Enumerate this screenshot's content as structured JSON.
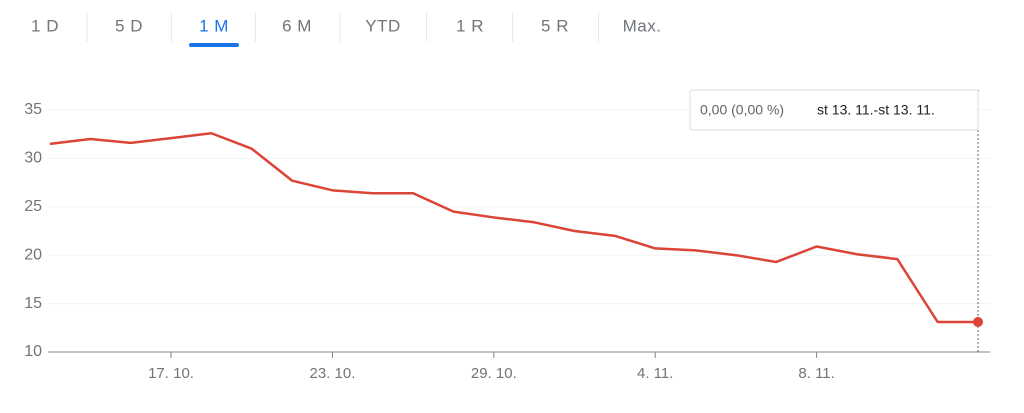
{
  "tabs": {
    "items": [
      "1 D",
      "5 D",
      "1 M",
      "6 M",
      "YTD",
      "1 R",
      "5 R",
      "Max."
    ],
    "selected": 2
  },
  "chart_data": {
    "type": "line",
    "categories": [
      null,
      null,
      null,
      "17. 10.",
      null,
      null,
      null,
      "23. 10.",
      null,
      null,
      null,
      "29. 10.",
      null,
      null,
      null,
      "4. 11.",
      null,
      null,
      null,
      "8. 11.",
      null,
      null,
      null,
      null
    ],
    "values": [
      31.5,
      32.0,
      31.6,
      32.1,
      32.6,
      31.0,
      27.7,
      26.7,
      26.4,
      26.4,
      24.5,
      23.9,
      23.4,
      22.5,
      22.0,
      20.7,
      20.5,
      20.0,
      19.3,
      20.9,
      20.1,
      19.6,
      13.1,
      13.1
    ],
    "color": "#db4437",
    "ylim": [
      10,
      35
    ],
    "yticks": [
      10,
      15,
      20,
      25,
      30,
      35
    ],
    "grid": true,
    "tooltip": {
      "change": "0,00 (0,00 %)",
      "range": "st 13. 11.-st 13. 11."
    }
  }
}
